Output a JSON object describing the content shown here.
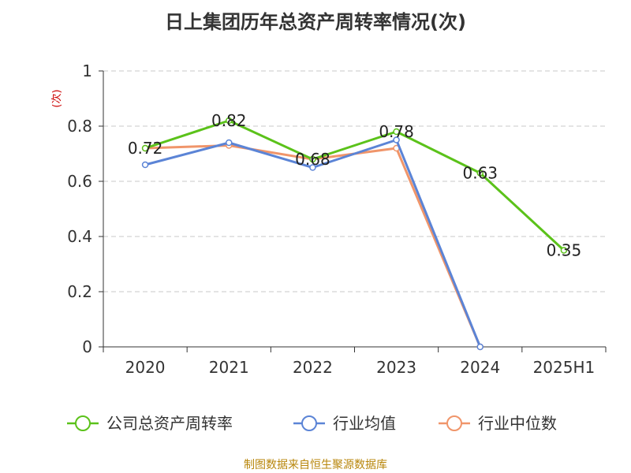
{
  "chart_data": {
    "type": "line",
    "title": "日上集团历年总资产周转率情况(次)",
    "ylabel": "(次)",
    "xlabel": "",
    "categories": [
      "2020",
      "2021",
      "2022",
      "2023",
      "2024",
      "2025H1"
    ],
    "ylim": [
      0,
      1
    ],
    "yticks": [
      "0",
      "0.2",
      "0.4",
      "0.6",
      "0.8",
      "1"
    ],
    "ytick_values": [
      0,
      0.2,
      0.4,
      0.6,
      0.8,
      1
    ],
    "grid": true,
    "legend_position": "bottom",
    "series": [
      {
        "name": "公司总资产周转率",
        "color": "#5bc21a",
        "values": [
          0.72,
          0.82,
          0.68,
          0.78,
          0.63,
          0.35
        ],
        "labels": [
          "0.72",
          "0.82",
          "0.68",
          "0.78",
          "0.63",
          "0.35"
        ]
      },
      {
        "name": "行业均值",
        "color": "#5b84d6",
        "values": [
          0.66,
          0.74,
          0.65,
          0.75,
          0,
          null
        ]
      },
      {
        "name": "行业中位数",
        "color": "#f0956a",
        "values": [
          0.72,
          0.73,
          0.68,
          0.72,
          0,
          null
        ]
      }
    ]
  },
  "source": "制图数据来自恒生聚源数据库",
  "colors": {
    "axis": "#333333",
    "grid": "#c8c8c8",
    "ylabel": "#cc0000",
    "source": "#b8860b"
  }
}
